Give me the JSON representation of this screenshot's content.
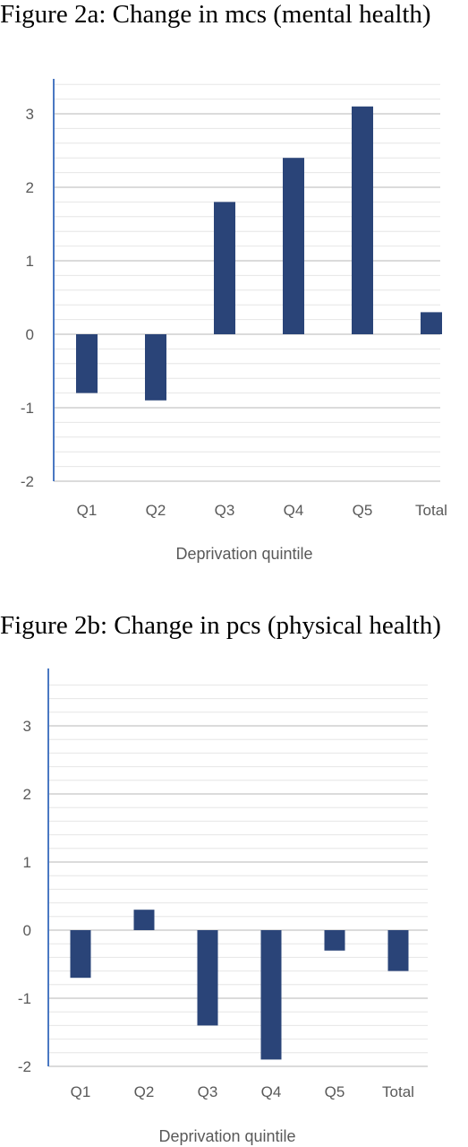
{
  "colors": {
    "bar": "#2a4478",
    "axis": "#4a78c2",
    "grid_major": "#cfcfcf",
    "grid_minor": "#e6e6e6",
    "text": "#595959"
  },
  "chart_data": [
    {
      "type": "bar",
      "title": "Figure 2a: Change in mcs (mental health)",
      "categories": [
        "Q1",
        "Q2",
        "Q3",
        "Q4",
        "Q5",
        "Total"
      ],
      "values": [
        -0.8,
        -0.9,
        1.8,
        2.4,
        3.1,
        0.3
      ],
      "xlabel": "Deprivation quintile",
      "ylabel": "",
      "ylim": [
        -2,
        3.5
      ],
      "yticks": [
        3,
        2,
        1,
        0,
        -1,
        -2
      ],
      "grid": true,
      "legend": false
    },
    {
      "type": "bar",
      "title": "Figure 2b: Change in pcs (physical health)",
      "categories": [
        "Q1",
        "Q2",
        "Q3",
        "Q4",
        "Q5",
        "Total"
      ],
      "values": [
        -0.7,
        0.3,
        -1.4,
        -1.9,
        -0.3,
        -0.6
      ],
      "xlabel": "Deprivation quintile",
      "ylabel": "",
      "ylim": [
        -2,
        3.5
      ],
      "yticks": [
        3,
        2,
        1,
        0,
        -1,
        -2
      ],
      "grid": true,
      "legend": false
    }
  ]
}
